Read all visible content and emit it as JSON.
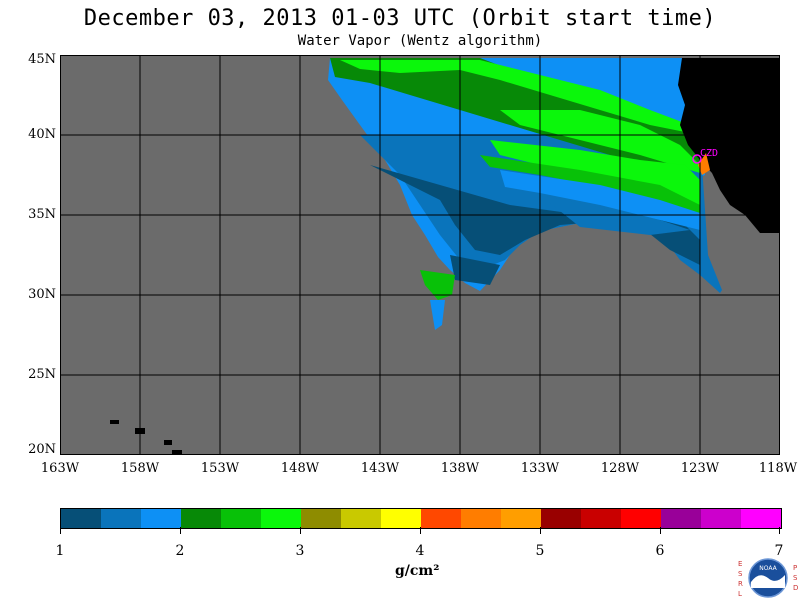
{
  "title": "December 03, 2013  01-03 UTC  (Orbit start time)",
  "subtitle": "Water Vapor (Wentz algorithm)",
  "map": {
    "lat_labels": [
      "45N",
      "40N",
      "35N",
      "30N",
      "25N",
      "20N"
    ],
    "lon_labels": [
      "163W",
      "158W",
      "153W",
      "148W",
      "143W",
      "138W",
      "133W",
      "128W",
      "123W",
      "118W"
    ],
    "station": "CZD",
    "colors": {
      "background": "#6b6b6b",
      "land": "#000000",
      "grid": "#000000",
      "station": "#ff00ff"
    }
  },
  "colorbar": {
    "colors": [
      "#064f77",
      "#0a74bb",
      "#0d90f5",
      "#078907",
      "#08c108",
      "#0bf70b",
      "#8e8c00",
      "#c9c900",
      "#ffff00",
      "#ff4800",
      "#ff7d00",
      "#ff9e00",
      "#990000",
      "#c90000",
      "#ff0000",
      "#990099",
      "#cc00cc",
      "#ff00ff"
    ],
    "labels": [
      "1",
      "2",
      "3",
      "4",
      "5",
      "6",
      "7"
    ],
    "units": "g/cm²"
  },
  "logo": {
    "left_letters": "ESRL",
    "right_letters": "PSD",
    "center_text": "NOAA"
  }
}
